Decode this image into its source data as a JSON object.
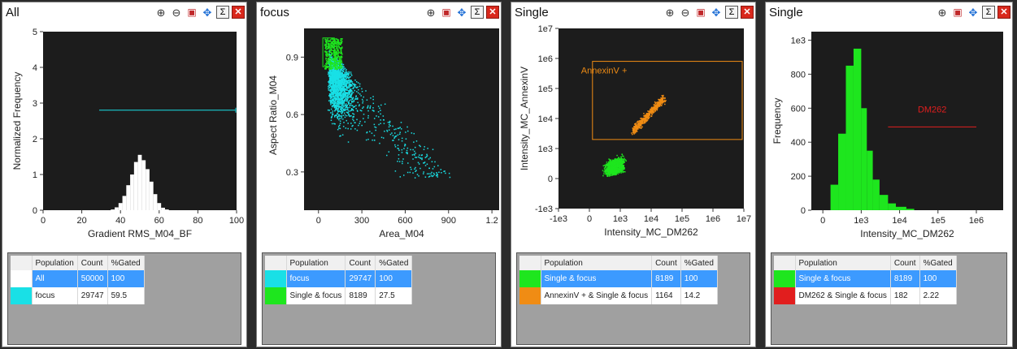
{
  "colors": {
    "plot_bg": "#1c1c1c",
    "cyan": "#19e0e6",
    "green": "#1ee61e",
    "orange": "#f08c14",
    "red": "#e11e1e",
    "white": "#ffffff",
    "selected_row": "#3c9aff"
  },
  "toolbar_icons": [
    "zoom-in-icon",
    "zoom-out-icon",
    "gallery-icon",
    "pan-icon",
    "statistics-icon",
    "close-icon"
  ],
  "table_headers": {
    "population": "Population",
    "count": "Count",
    "gated": "%Gated"
  },
  "panels": [
    {
      "title": "All",
      "xlabel": "Gradient RMS_M04_BF",
      "ylabel": "Normalized Frequency",
      "x_ticks": [
        "0",
        "20",
        "40",
        "60",
        "80",
        "100"
      ],
      "y_ticks": [
        "0",
        "1",
        "2",
        "3",
        "4",
        "5"
      ],
      "rows": [
        {
          "color": "#ffffff",
          "population": "All",
          "count": "50000",
          "gated": "100",
          "selected": true
        },
        {
          "color": "#19e0e6",
          "population": "focus",
          "count": "29747",
          "gated": "59.5",
          "selected": false
        }
      ]
    },
    {
      "title": "focus",
      "xlabel": "Area_M04",
      "ylabel": "Aspect Ratio_M04",
      "x_ticks": [
        "0",
        "300",
        "600",
        "900",
        "1.2"
      ],
      "y_ticks": [
        "0.3",
        "0.6",
        "0.9"
      ],
      "rows": [
        {
          "color": "#19e0e6",
          "population": "focus",
          "count": "29747",
          "gated": "100",
          "selected": true
        },
        {
          "color": "#1ee61e",
          "population": "Single & focus",
          "count": "8189",
          "gated": "27.5",
          "selected": false
        }
      ]
    },
    {
      "title": "Single",
      "xlabel": "Intensity_MC_DM262",
      "ylabel": "Intensity_MC_AnnexinV",
      "x_ticks": [
        "-1e3",
        "0",
        "1e3",
        "1e4",
        "1e5",
        "1e6",
        "1e7"
      ],
      "y_ticks": [
        "-1e3",
        "0",
        "1e3",
        "1e4",
        "1e5",
        "1e6",
        "1e7"
      ],
      "gate_label": "AnnexinV +",
      "rows": [
        {
          "color": "#1ee61e",
          "population": "Single & focus",
          "count": "8189",
          "gated": "100",
          "selected": true
        },
        {
          "color": "#f08c14",
          "population": "AnnexinV + & Single & focus",
          "count": "1164",
          "gated": "14.2",
          "selected": false
        }
      ]
    },
    {
      "title": "Single",
      "xlabel": "Intensity_MC_DM262",
      "ylabel": "Frequency",
      "x_ticks": [
        "0",
        "1e3",
        "1e4",
        "1e5",
        "1e6"
      ],
      "y_ticks": [
        "0",
        "200",
        "400",
        "600",
        "800",
        "1e3"
      ],
      "gate_label": "DM262",
      "rows": [
        {
          "color": "#1ee61e",
          "population": "Single & focus",
          "count": "8189",
          "gated": "100",
          "selected": true
        },
        {
          "color": "#e11e1e",
          "population": "DM262 & Single & focus",
          "count": "182",
          "gated": "2.22",
          "selected": false
        }
      ]
    }
  ],
  "chart_data": [
    {
      "type": "bar",
      "xlabel": "Gradient RMS_M04_BF",
      "ylabel": "Normalized Frequency",
      "xlim": [
        0,
        100
      ],
      "ylim": [
        0,
        5
      ],
      "x": [
        36,
        38,
        40,
        42,
        44,
        46,
        48,
        50,
        52,
        54,
        56,
        58,
        60,
        62,
        64
      ],
      "values": [
        0.02,
        0.08,
        0.2,
        0.4,
        0.7,
        1.0,
        1.35,
        1.55,
        1.4,
        1.15,
        0.8,
        0.45,
        0.2,
        0.07,
        0.02
      ],
      "gate": {
        "name": "focus",
        "x": [
          29,
          100
        ],
        "y": 2.8
      }
    },
    {
      "type": "scatter",
      "xlabel": "Area_M04",
      "ylabel": "Aspect Ratio_M04",
      "xlim": [
        -100,
        1250
      ],
      "ylim": [
        0.1,
        1.05
      ],
      "series": [
        {
          "name": "focus",
          "color": "#19e0e6"
        },
        {
          "name": "Single & focus",
          "color": "#1ee61e"
        }
      ]
    },
    {
      "type": "scatter",
      "xlabel": "Intensity_MC_DM262",
      "ylabel": "Intensity_MC_AnnexinV",
      "x_scale": "log",
      "y_scale": "log",
      "xlim": [
        -1000,
        10000000
      ],
      "ylim": [
        -1000,
        10000000
      ],
      "gate": {
        "name": "AnnexinV +",
        "x": [
          100,
          10000000
        ],
        "y": [
          2000,
          800000
        ]
      },
      "series": [
        {
          "name": "Single & focus",
          "color": "#1ee61e"
        },
        {
          "name": "AnnexinV + & Single & focus",
          "color": "#f08c14"
        }
      ]
    },
    {
      "type": "bar",
      "xlabel": "Intensity_MC_DM262",
      "ylabel": "Frequency",
      "x_scale": "log",
      "xlim": [
        -300,
        5000000
      ],
      "ylim": [
        0,
        1050
      ],
      "x": [
        200,
        400,
        600,
        800,
        1000,
        1400,
        2000,
        3000,
        5000,
        8000,
        15000
      ],
      "values": [
        150,
        450,
        850,
        950,
        600,
        350,
        180,
        90,
        40,
        20,
        8
      ],
      "gate": {
        "name": "DM262",
        "x": [
          5000,
          1000000
        ],
        "y": 490
      }
    }
  ]
}
